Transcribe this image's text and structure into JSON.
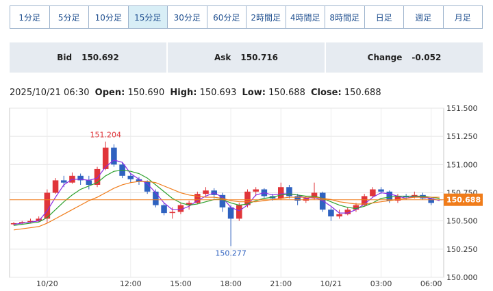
{
  "tabs": {
    "labels": [
      "1分足",
      "5分足",
      "10分足",
      "15分足",
      "30分足",
      "60分足",
      "2時間足",
      "4時間足",
      "8時間足",
      "日足",
      "週足",
      "月足"
    ],
    "selected": 3
  },
  "quote": {
    "bid_label": "Bid",
    "bid": "150.692",
    "ask_label": "Ask",
    "ask": "150.716",
    "change_label": "Change",
    "change": "-0.052"
  },
  "ohlc": {
    "time": "2025/10/21 06:30",
    "open_label": "Open:",
    "open": "150.690",
    "high_label": "High:",
    "high": "150.693",
    "low_label": "Low:",
    "low": "150.688",
    "close_label": "Close:",
    "close": "150.688"
  },
  "chart_data": {
    "type": "candlestick",
    "categories": [
      null,
      null,
      null,
      null,
      "10/20",
      null,
      null,
      null,
      null,
      null,
      null,
      null,
      null,
      null,
      "12:00",
      null,
      null,
      null,
      null,
      null,
      "15:00",
      null,
      null,
      null,
      null,
      null,
      "18:00",
      null,
      null,
      null,
      null,
      null,
      "21:00",
      null,
      null,
      null,
      null,
      null,
      "10/21",
      null,
      null,
      null,
      null,
      null,
      "03:00",
      null,
      null,
      null,
      null,
      null,
      "06:00",
      null
    ],
    "open": [
      150.47,
      150.48,
      150.49,
      150.5,
      150.52,
      150.75,
      150.86,
      150.84,
      150.9,
      150.86,
      150.82,
      150.96,
      151.15,
      151.0,
      150.9,
      150.87,
      150.85,
      150.76,
      150.64,
      150.57,
      150.58,
      150.64,
      150.66,
      150.74,
      150.77,
      150.73,
      150.62,
      150.52,
      150.64,
      150.76,
      150.78,
      150.72,
      150.7,
      150.8,
      150.72,
      150.68,
      150.7,
      150.75,
      150.6,
      150.54,
      150.56,
      150.6,
      150.64,
      150.72,
      150.78,
      150.76,
      150.68,
      150.72,
      150.71,
      150.73,
      150.7,
      150.69
    ],
    "high": [
      150.49,
      150.5,
      150.52,
      150.54,
      150.78,
      150.88,
      150.9,
      150.93,
      150.92,
      150.9,
      150.98,
      151.204,
      151.18,
      151.02,
      150.92,
      150.89,
      150.86,
      150.78,
      150.66,
      150.62,
      150.66,
      150.68,
      150.76,
      150.8,
      150.79,
      150.75,
      150.64,
      150.66,
      150.78,
      150.8,
      150.79,
      150.74,
      150.84,
      150.82,
      150.74,
      150.72,
      150.84,
      150.76,
      150.62,
      150.6,
      150.62,
      150.66,
      150.74,
      150.8,
      150.8,
      150.77,
      150.74,
      150.74,
      150.76,
      150.75,
      150.71,
      150.693
    ],
    "low": [
      150.46,
      150.47,
      150.48,
      150.49,
      150.48,
      150.74,
      150.8,
      150.83,
      150.82,
      150.78,
      150.8,
      150.95,
      150.98,
      150.88,
      150.84,
      150.82,
      150.74,
      150.62,
      150.55,
      150.52,
      150.56,
      150.6,
      150.65,
      150.72,
      150.7,
      150.58,
      150.277,
      150.5,
      150.62,
      150.72,
      150.7,
      150.68,
      150.69,
      150.7,
      150.64,
      150.66,
      150.69,
      150.58,
      150.5,
      150.52,
      150.55,
      150.58,
      150.63,
      150.71,
      150.74,
      150.66,
      150.66,
      150.69,
      150.7,
      150.69,
      150.64,
      150.688
    ],
    "close": [
      150.48,
      150.49,
      150.5,
      150.52,
      150.75,
      150.86,
      150.84,
      150.9,
      150.86,
      150.82,
      150.96,
      151.15,
      151.0,
      150.9,
      150.87,
      150.85,
      150.76,
      150.64,
      150.57,
      150.58,
      150.64,
      150.66,
      150.74,
      150.77,
      150.73,
      150.62,
      150.52,
      150.64,
      150.76,
      150.78,
      150.72,
      150.7,
      150.8,
      150.72,
      150.68,
      150.7,
      150.75,
      150.6,
      150.54,
      150.56,
      150.6,
      150.64,
      150.72,
      150.78,
      150.76,
      150.68,
      150.72,
      150.71,
      150.73,
      150.7,
      150.66,
      150.688
    ],
    "up_color": "#e0353a",
    "down_color": "#2f62c0",
    "moving_averages": [
      {
        "color": "#8a2be2",
        "values": [
          150.47,
          150.48,
          150.49,
          150.5,
          150.59,
          150.71,
          150.82,
          150.87,
          150.87,
          150.86,
          150.88,
          150.98,
          151.04,
          151.02,
          150.92,
          150.87,
          150.83,
          150.75,
          150.66,
          150.6,
          150.6,
          150.63,
          150.68,
          150.72,
          150.75,
          150.71,
          150.62,
          150.59,
          150.64,
          150.73,
          150.75,
          150.73,
          150.74,
          150.74,
          150.73,
          150.7,
          150.71,
          150.68,
          150.63,
          150.57,
          150.57,
          150.6,
          150.65,
          150.71,
          150.75,
          150.74,
          150.72,
          150.7,
          150.72,
          150.71,
          150.7,
          150.68
        ]
      },
      {
        "color": "#2ca02c",
        "values": [
          150.46,
          150.47,
          150.48,
          150.49,
          150.53,
          150.6,
          150.67,
          150.73,
          150.78,
          150.81,
          150.84,
          150.9,
          150.94,
          150.95,
          150.94,
          150.92,
          150.88,
          150.82,
          150.76,
          150.7,
          150.66,
          150.64,
          150.65,
          150.67,
          150.69,
          150.69,
          150.66,
          150.64,
          150.65,
          150.68,
          150.7,
          150.71,
          150.73,
          150.74,
          150.73,
          150.72,
          150.72,
          150.7,
          150.67,
          150.64,
          150.62,
          150.61,
          150.63,
          150.66,
          150.7,
          150.71,
          150.72,
          150.72,
          150.72,
          150.72,
          150.71,
          150.7
        ]
      },
      {
        "color": "#f07c1a",
        "values": [
          150.42,
          150.43,
          150.44,
          150.45,
          150.48,
          150.52,
          150.56,
          150.6,
          150.64,
          150.68,
          150.71,
          150.75,
          150.79,
          150.82,
          150.84,
          150.85,
          150.85,
          150.84,
          150.81,
          150.78,
          150.75,
          150.73,
          150.72,
          150.71,
          150.71,
          150.7,
          150.68,
          150.67,
          150.67,
          150.67,
          150.68,
          150.69,
          150.7,
          150.71,
          150.71,
          150.71,
          150.71,
          150.7,
          150.69,
          150.67,
          150.66,
          150.65,
          150.65,
          150.66,
          150.67,
          150.68,
          150.69,
          150.7,
          150.71,
          150.71,
          150.71,
          150.71
        ]
      }
    ],
    "last_price": 150.688,
    "last_price_color": "#f07c1a",
    "high_annotation_index": 11,
    "low_annotation_index": 26,
    "ylim": [
      150.0,
      151.5
    ],
    "yticks": [
      {
        "value": 150.0,
        "label": "150.000"
      },
      {
        "value": 150.25,
        "label": "150.250"
      },
      {
        "value": 150.5,
        "label": "150.500"
      },
      {
        "value": 150.75,
        "label": "150.750"
      },
      {
        "value": 151.0,
        "label": "151.000"
      },
      {
        "value": 151.25,
        "label": "151.250"
      },
      {
        "value": 151.5,
        "label": "151.500"
      }
    ],
    "grid": true
  }
}
